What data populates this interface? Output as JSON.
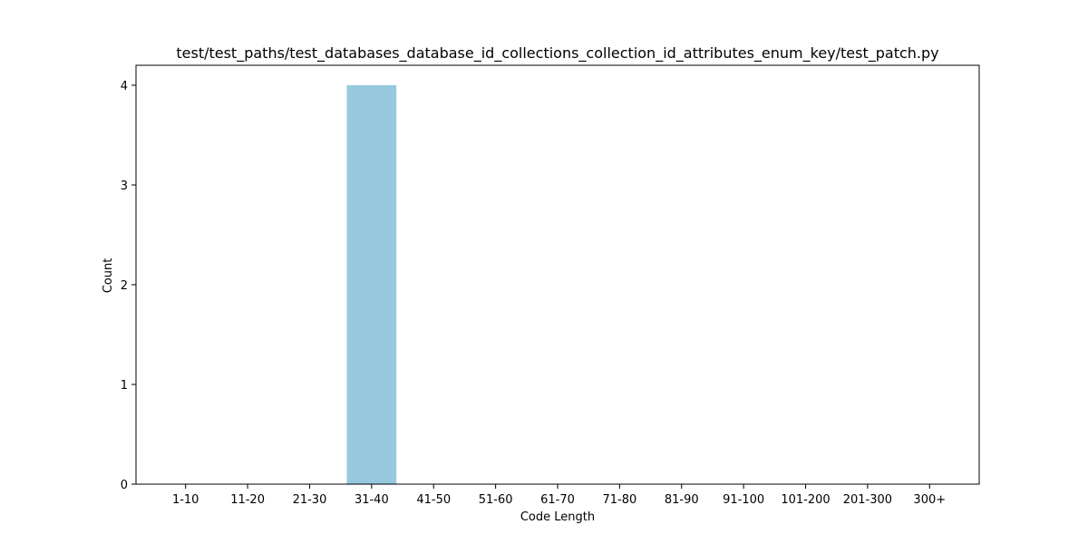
{
  "chart_data": {
    "type": "bar",
    "title": "test/test_paths/test_databases_database_id_collections_collection_id_attributes_enum_key/test_patch.py",
    "xlabel": "Code Length",
    "ylabel": "Count",
    "categories": [
      "1-10",
      "11-20",
      "21-30",
      "31-40",
      "41-50",
      "51-60",
      "61-70",
      "71-80",
      "81-90",
      "91-100",
      "101-200",
      "201-300",
      "300+"
    ],
    "values": [
      0,
      0,
      0,
      4,
      0,
      0,
      0,
      0,
      0,
      0,
      0,
      0,
      0
    ],
    "ylim": [
      0,
      4.2
    ],
    "yticks": [
      0,
      1,
      2,
      3,
      4
    ],
    "bar_color": "#96c9de",
    "grid": false,
    "legend": "none"
  }
}
